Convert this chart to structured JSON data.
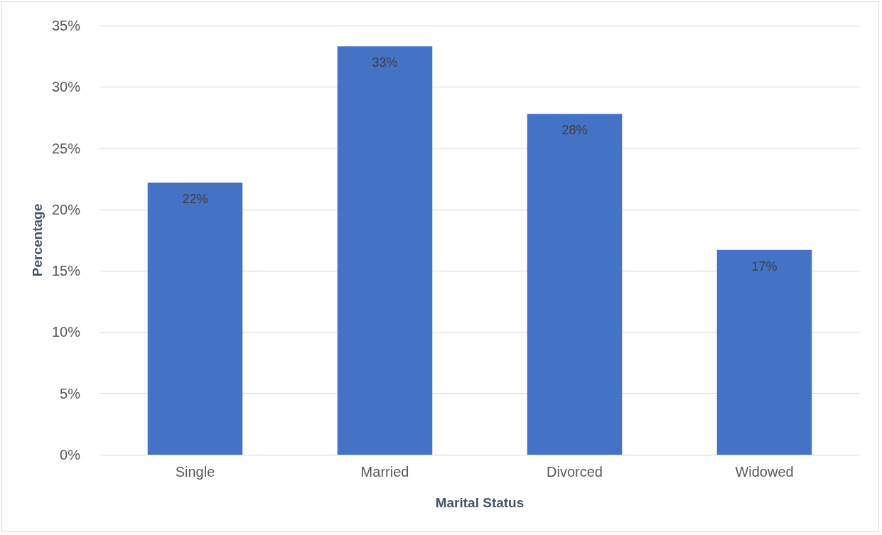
{
  "chart_data": {
    "type": "bar",
    "xlabel": "Marital Status",
    "ylabel": "Percentage",
    "categories": [
      "Single",
      "Married",
      "Divorced",
      "Widowed"
    ],
    "values": [
      22.2,
      33.3,
      27.8,
      16.7
    ],
    "value_labels": [
      "22%",
      "33%",
      "28%",
      "17%"
    ],
    "color": "#4472c4",
    "ylim": [
      0,
      35
    ],
    "yticks": [
      {
        "value": 0,
        "label": "0%"
      },
      {
        "value": 5,
        "label": "5%"
      },
      {
        "value": 10,
        "label": "10%"
      },
      {
        "value": 15,
        "label": "15%"
      },
      {
        "value": 20,
        "label": "20%"
      },
      {
        "value": 25,
        "label": "25%"
      },
      {
        "value": 30,
        "label": "30%"
      },
      {
        "value": 35,
        "label": "35%"
      }
    ],
    "grid": "y"
  }
}
